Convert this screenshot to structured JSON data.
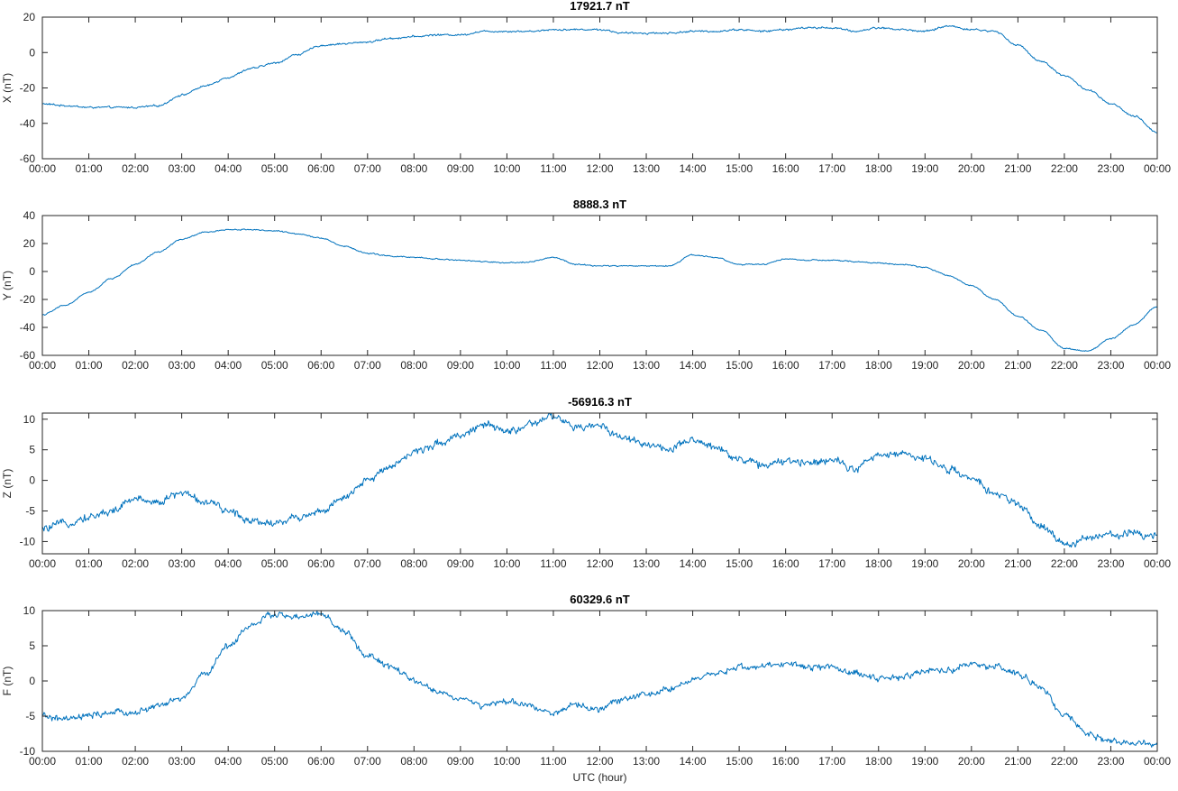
{
  "chart_data": [
    {
      "type": "line",
      "title": "17921.7 nT",
      "xlabel": "",
      "ylabel": "X (nT)",
      "ylim": [
        -60,
        20
      ],
      "yticks": [
        -60,
        -40,
        -20,
        0,
        20
      ],
      "xlim": [
        0,
        24
      ],
      "xticklabels": [
        "00:00",
        "01:00",
        "02:00",
        "03:00",
        "04:00",
        "05:00",
        "06:00",
        "07:00",
        "08:00",
        "09:00",
        "10:00",
        "11:00",
        "12:00",
        "13:00",
        "14:00",
        "15:00",
        "16:00",
        "17:00",
        "18:00",
        "19:00",
        "20:00",
        "21:00",
        "22:00",
        "23:00",
        "00:00"
      ],
      "grid": false,
      "noise": 0.6,
      "series": [
        {
          "color": "#0072bd",
          "x": [
            0,
            0.5,
            1,
            1.5,
            2,
            2.5,
            3,
            3.5,
            4,
            4.5,
            5,
            5.5,
            6,
            6.5,
            7,
            7.5,
            8,
            8.5,
            9,
            9.5,
            10,
            10.5,
            11,
            11.5,
            12,
            12.5,
            13,
            13.5,
            14,
            14.5,
            15,
            15.5,
            16,
            16.5,
            17,
            17.5,
            18,
            18.5,
            19,
            19.5,
            20,
            20.5,
            21,
            21.5,
            22,
            22.5,
            23,
            23.5,
            24
          ],
          "y": [
            -29,
            -30,
            -31,
            -31,
            -31,
            -30,
            -24,
            -19,
            -14,
            -9,
            -6,
            -1,
            4,
            5,
            6,
            8,
            9,
            10,
            10,
            12,
            12,
            12,
            13,
            13,
            13,
            11,
            11,
            11,
            12,
            12,
            13,
            12,
            13,
            14,
            14,
            12,
            14,
            13,
            12,
            15,
            13,
            12,
            4,
            -5,
            -13,
            -21,
            -29,
            -36,
            -45
          ]
        }
      ]
    },
    {
      "type": "line",
      "title": "8888.3 nT",
      "xlabel": "",
      "ylabel": "Y (nT)",
      "ylim": [
        -60,
        40
      ],
      "yticks": [
        -60,
        -40,
        -20,
        0,
        20,
        40
      ],
      "xlim": [
        0,
        24
      ],
      "xticklabels": [
        "00:00",
        "01:00",
        "02:00",
        "03:00",
        "04:00",
        "05:00",
        "06:00",
        "07:00",
        "08:00",
        "09:00",
        "10:00",
        "11:00",
        "12:00",
        "13:00",
        "14:00",
        "15:00",
        "16:00",
        "17:00",
        "18:00",
        "19:00",
        "20:00",
        "21:00",
        "22:00",
        "23:00",
        "00:00"
      ],
      "grid": false,
      "noise": 0.5,
      "series": [
        {
          "color": "#0072bd",
          "x": [
            0,
            0.5,
            1,
            1.5,
            2,
            2.5,
            3,
            3.5,
            4,
            4.5,
            5,
            5.5,
            6,
            6.5,
            7,
            7.5,
            8,
            8.5,
            9,
            9.5,
            10,
            10.5,
            11,
            11.5,
            12,
            12.5,
            13,
            13.5,
            14,
            14.5,
            15,
            15.5,
            16,
            16.5,
            17,
            17.5,
            18,
            18.5,
            19,
            19.5,
            20,
            20.5,
            21,
            21.5,
            22,
            22.5,
            23,
            23.5,
            24
          ],
          "y": [
            -31,
            -24,
            -15,
            -5,
            5,
            14,
            23,
            28,
            30,
            30,
            29,
            27,
            24,
            18,
            13,
            11,
            10,
            9,
            8,
            7,
            6,
            7,
            10,
            5,
            4,
            4,
            4,
            4,
            12,
            10,
            5,
            5,
            9,
            8,
            8,
            7,
            6,
            5,
            3,
            -3,
            -10,
            -20,
            -32,
            -42,
            -55,
            -57,
            -48,
            -38,
            -25
          ]
        }
      ]
    },
    {
      "type": "line",
      "title": "-56916.3 nT",
      "xlabel": "",
      "ylabel": "Z (nT)",
      "ylim": [
        -12,
        11
      ],
      "yticks": [
        -10,
        -5,
        0,
        5,
        10
      ],
      "xlim": [
        0,
        24
      ],
      "xticklabels": [
        "00:00",
        "01:00",
        "02:00",
        "03:00",
        "04:00",
        "05:00",
        "06:00",
        "07:00",
        "08:00",
        "09:00",
        "10:00",
        "11:00",
        "12:00",
        "13:00",
        "14:00",
        "15:00",
        "16:00",
        "17:00",
        "18:00",
        "19:00",
        "20:00",
        "21:00",
        "22:00",
        "23:00",
        "00:00"
      ],
      "grid": false,
      "noise": 0.7,
      "series": [
        {
          "color": "#0072bd",
          "x": [
            0,
            0.5,
            1,
            1.5,
            2,
            2.5,
            3,
            3.5,
            4,
            4.5,
            5,
            5.5,
            6,
            6.5,
            7,
            7.5,
            8,
            8.5,
            9,
            9.5,
            10,
            10.5,
            11,
            11.5,
            12,
            12.5,
            13,
            13.5,
            14,
            14.5,
            15,
            15.5,
            16,
            16.5,
            17,
            17.5,
            18,
            18.5,
            19,
            19.5,
            20,
            20.5,
            21,
            21.5,
            22,
            22.5,
            23,
            23.5,
            24
          ],
          "y": [
            -8,
            -7,
            -6,
            -5,
            -3,
            -3.5,
            -2,
            -3.5,
            -5,
            -6.5,
            -7,
            -6,
            -5,
            -3,
            0,
            2.5,
            4.5,
            6,
            7.5,
            9,
            8,
            9,
            10.5,
            8.5,
            9,
            7,
            6,
            5,
            6.5,
            5.5,
            3.5,
            2.5,
            3,
            3,
            3.5,
            2,
            4,
            4.5,
            3.5,
            2,
            0,
            -2,
            -4,
            -7.5,
            -10.5,
            -9.5,
            -9,
            -8.5,
            -9
          ]
        }
      ]
    },
    {
      "type": "line",
      "title": "60329.6 nT",
      "xlabel": "UTC (hour)",
      "ylabel": "F (nT)",
      "ylim": [
        -10,
        10
      ],
      "yticks": [
        -10,
        -5,
        0,
        5,
        10
      ],
      "xlim": [
        0,
        24
      ],
      "xticklabels": [
        "00:00",
        "01:00",
        "02:00",
        "03:00",
        "04:00",
        "05:00",
        "06:00",
        "07:00",
        "08:00",
        "09:00",
        "10:00",
        "11:00",
        "12:00",
        "13:00",
        "14:00",
        "15:00",
        "16:00",
        "17:00",
        "18:00",
        "19:00",
        "20:00",
        "21:00",
        "22:00",
        "23:00",
        "00:00"
      ],
      "grid": false,
      "noise": 0.5,
      "series": [
        {
          "color": "#0072bd",
          "x": [
            0,
            0.5,
            1,
            1.5,
            2,
            2.5,
            3,
            3.5,
            4,
            4.5,
            5,
            5.5,
            6,
            6.5,
            7,
            7.5,
            8,
            8.5,
            9,
            9.5,
            10,
            10.5,
            11,
            11.5,
            12,
            12.5,
            13,
            13.5,
            14,
            14.5,
            15,
            15.5,
            16,
            16.5,
            17,
            17.5,
            18,
            18.5,
            19,
            19.5,
            20,
            20.5,
            21,
            21.5,
            22,
            22.5,
            23,
            23.5,
            24
          ],
          "y": [
            -5,
            -5.5,
            -5,
            -4.5,
            -4.5,
            -3.5,
            -2.5,
            1,
            5,
            8,
            9.5,
            9,
            9.5,
            7,
            3.5,
            2,
            0,
            -1.5,
            -2.5,
            -3.5,
            -3,
            -3.5,
            -4.5,
            -3.5,
            -4,
            -2.5,
            -2,
            -1,
            0,
            1,
            2,
            2,
            2.5,
            2,
            2,
            1,
            0.5,
            0.5,
            1.5,
            1.5,
            2.5,
            2,
            1,
            -1,
            -5,
            -7.5,
            -8.5,
            -9,
            -9
          ]
        }
      ]
    }
  ]
}
